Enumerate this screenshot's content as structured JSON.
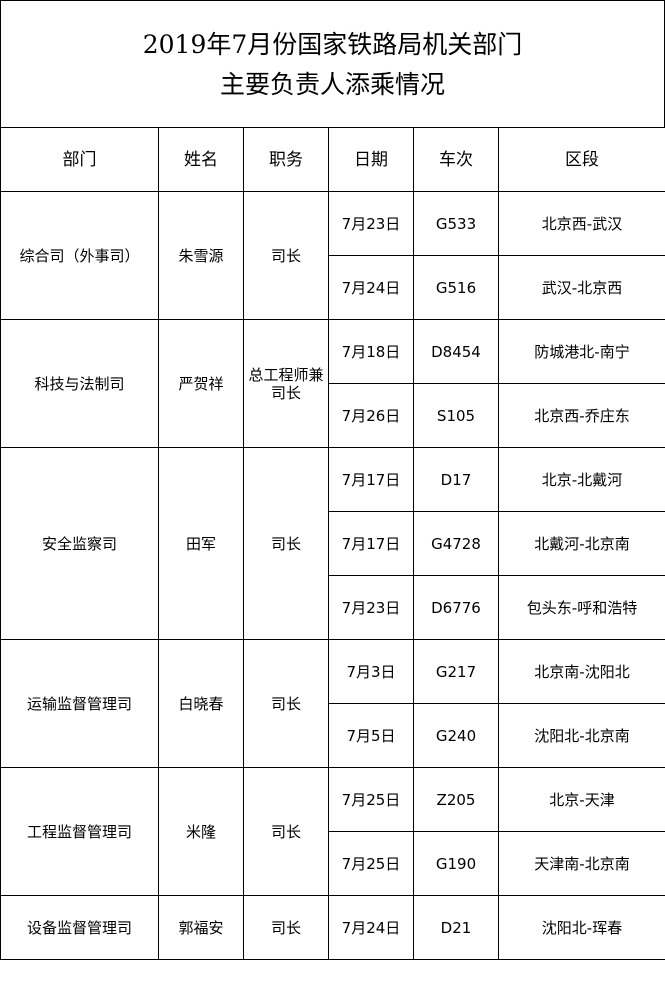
{
  "title": {
    "line1": "2019年7月份国家铁路局机关部门",
    "line2": "主要负责人添乘情况"
  },
  "headers": [
    "部门",
    "姓名",
    "职务",
    "日期",
    "车次",
    "区段"
  ],
  "departments": [
    {
      "dept": "综合司（外事司）",
      "name": "朱雪源",
      "position": "司长",
      "trips": [
        {
          "date": "7月23日",
          "train": "G533",
          "section": "北京西-武汉"
        },
        {
          "date": "7月24日",
          "train": "G516",
          "section": "武汉-北京西"
        }
      ]
    },
    {
      "dept": "科技与法制司",
      "name": "严贺祥",
      "position": "总工程师兼司长",
      "trips": [
        {
          "date": "7月18日",
          "train": "D8454",
          "section": "防城港北-南宁"
        },
        {
          "date": "7月26日",
          "train": "S105",
          "section": "北京西-乔庄东"
        }
      ]
    },
    {
      "dept": "安全监察司",
      "name": "田军",
      "position": "司长",
      "trips": [
        {
          "date": "7月17日",
          "train": "D17",
          "section": "北京-北戴河"
        },
        {
          "date": "7月17日",
          "train": "G4728",
          "section": "北戴河-北京南"
        },
        {
          "date": "7月23日",
          "train": "D6776",
          "section": "包头东-呼和浩特"
        }
      ]
    },
    {
      "dept": "运输监督管理司",
      "name": "白晓春",
      "position": "司长",
      "trips": [
        {
          "date": "7月3日",
          "train": "G217",
          "section": "北京南-沈阳北"
        },
        {
          "date": "7月5日",
          "train": "G240",
          "section": "沈阳北-北京南"
        }
      ]
    },
    {
      "dept": "工程监督管理司",
      "name": "米隆",
      "position": "司长",
      "trips": [
        {
          "date": "7月25日",
          "train": "Z205",
          "section": "北京-天津"
        },
        {
          "date": "7月25日",
          "train": "G190",
          "section": "天津南-北京南"
        }
      ]
    },
    {
      "dept": "设备监督管理司",
      "name": "郭福安",
      "position": "司长",
      "trips": [
        {
          "date": "7月24日",
          "train": "D21",
          "section": "沈阳北-珲春"
        }
      ]
    }
  ]
}
